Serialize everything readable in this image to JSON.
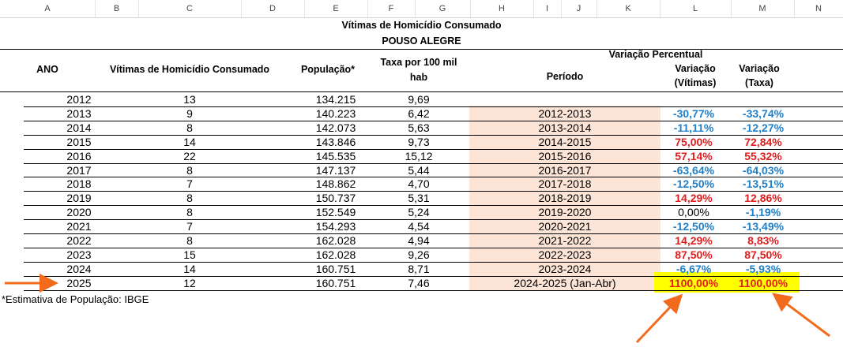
{
  "column_headers": [
    "A",
    "B",
    "C",
    "D",
    "E",
    "F",
    "G",
    "H",
    "I",
    "J",
    "K",
    "L",
    "M",
    "N"
  ],
  "title": "Vítimas de Homicídio Consumado",
  "subtitle": "POUSO ALEGRE",
  "headers": {
    "ano": "ANO",
    "vitimas": "Vítimas de Homicídio Consumado",
    "populacao": "População*",
    "taxa_line1": "Taxa por 100 mil",
    "taxa_line2": "hab",
    "periodo": "Período",
    "variacao_group": "Variação Percentual",
    "var_vitimas_line1": "Variação",
    "var_vitimas_line2": "(Vítimas)",
    "var_taxa_line1": "Variação",
    "var_taxa_line2": "(Taxa)"
  },
  "colors": {
    "positive": "#e31c1c",
    "negative": "#1f7fc9",
    "shade": "#fce4d6",
    "highlight": "#ffff00",
    "arrow": "#f26b1d"
  },
  "rows": [
    {
      "ano": "2012",
      "vitimas": "13",
      "populacao": "134.215",
      "taxa": "9,69",
      "periodo": "",
      "var_vitimas": "",
      "var_vitimas_sign": "",
      "var_taxa": "",
      "var_taxa_sign": ""
    },
    {
      "ano": "2013",
      "vitimas": "9",
      "populacao": "140.223",
      "taxa": "6,42",
      "periodo": "2012-2013",
      "var_vitimas": "-30,77%",
      "var_vitimas_sign": "neg",
      "var_taxa": "-33,74%",
      "var_taxa_sign": "neg"
    },
    {
      "ano": "2014",
      "vitimas": "8",
      "populacao": "142.073",
      "taxa": "5,63",
      "periodo": "2013-2014",
      "var_vitimas": "-11,11%",
      "var_vitimas_sign": "neg",
      "var_taxa": "-12,27%",
      "var_taxa_sign": "neg"
    },
    {
      "ano": "2015",
      "vitimas": "14",
      "populacao": "143.846",
      "taxa": "9,73",
      "periodo": "2014-2015",
      "var_vitimas": "75,00%",
      "var_vitimas_sign": "pos",
      "var_taxa": "72,84%",
      "var_taxa_sign": "pos"
    },
    {
      "ano": "2016",
      "vitimas": "22",
      "populacao": "145.535",
      "taxa": "15,12",
      "periodo": "2015-2016",
      "var_vitimas": "57,14%",
      "var_vitimas_sign": "pos",
      "var_taxa": "55,32%",
      "var_taxa_sign": "pos"
    },
    {
      "ano": "2017",
      "vitimas": "8",
      "populacao": "147.137",
      "taxa": "5,44",
      "periodo": "2016-2017",
      "var_vitimas": "-63,64%",
      "var_vitimas_sign": "neg",
      "var_taxa": "-64,03%",
      "var_taxa_sign": "neg"
    },
    {
      "ano": "2018",
      "vitimas": "7",
      "populacao": "148.862",
      "taxa": "4,70",
      "periodo": "2017-2018",
      "var_vitimas": "-12,50%",
      "var_vitimas_sign": "neg",
      "var_taxa": "-13,51%",
      "var_taxa_sign": "neg"
    },
    {
      "ano": "2019",
      "vitimas": "8",
      "populacao": "150.737",
      "taxa": "5,31",
      "periodo": "2018-2019",
      "var_vitimas": "14,29%",
      "var_vitimas_sign": "pos",
      "var_taxa": "12,86%",
      "var_taxa_sign": "pos"
    },
    {
      "ano": "2020",
      "vitimas": "8",
      "populacao": "152.549",
      "taxa": "5,24",
      "periodo": "2019-2020",
      "var_vitimas": "0,00%",
      "var_vitimas_sign": "zero",
      "var_taxa": "-1,19%",
      "var_taxa_sign": "neg"
    },
    {
      "ano": "2021",
      "vitimas": "7",
      "populacao": "154.293",
      "taxa": "4,54",
      "periodo": "2020-2021",
      "var_vitimas": "-12,50%",
      "var_vitimas_sign": "neg",
      "var_taxa": "-13,49%",
      "var_taxa_sign": "neg"
    },
    {
      "ano": "2022",
      "vitimas": "8",
      "populacao": "162.028",
      "taxa": "4,94",
      "periodo": "2021-2022",
      "var_vitimas": "14,29%",
      "var_vitimas_sign": "pos",
      "var_taxa": "8,83%",
      "var_taxa_sign": "pos"
    },
    {
      "ano": "2023",
      "vitimas": "15",
      "populacao": "162.028",
      "taxa": "9,26",
      "periodo": "2022-2023",
      "var_vitimas": "87,50%",
      "var_vitimas_sign": "pos",
      "var_taxa": "87,50%",
      "var_taxa_sign": "pos"
    },
    {
      "ano": "2024",
      "vitimas": "14",
      "populacao": "160.751",
      "taxa": "8,71",
      "periodo": "2023-2024",
      "var_vitimas": "-6,67%",
      "var_vitimas_sign": "neg",
      "var_taxa": "-5,93%",
      "var_taxa_sign": "neg"
    },
    {
      "ano": "2025",
      "vitimas": "12",
      "populacao": "160.751",
      "taxa": "7,46",
      "periodo": "2024-2025 (Jan-Abr)",
      "var_vitimas": "1100,00%",
      "var_vitimas_sign": "pos",
      "var_taxa": "1100,00%",
      "var_taxa_sign": "pos"
    }
  ],
  "footnote": "*Estimativa de População:  IBGE"
}
